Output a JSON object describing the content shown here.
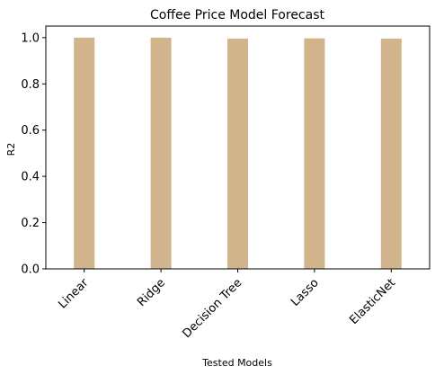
{
  "chart_data": {
    "type": "bar",
    "title": "Coffee Price Model Forecast",
    "xlabel": "Tested Models",
    "ylabel": "R2",
    "categories": [
      "Linear",
      "Ridge",
      "Decision Tree",
      "Lasso",
      "ElasticNet"
    ],
    "values": [
      1.0,
      1.0,
      0.996,
      0.997,
      0.996
    ],
    "ylim": [
      0,
      1.05
    ],
    "yticks": [
      "0.0",
      "0.2",
      "0.4",
      "0.6",
      "0.8",
      "1.0"
    ],
    "grid": false,
    "bar_color": "#d2b48c"
  }
}
